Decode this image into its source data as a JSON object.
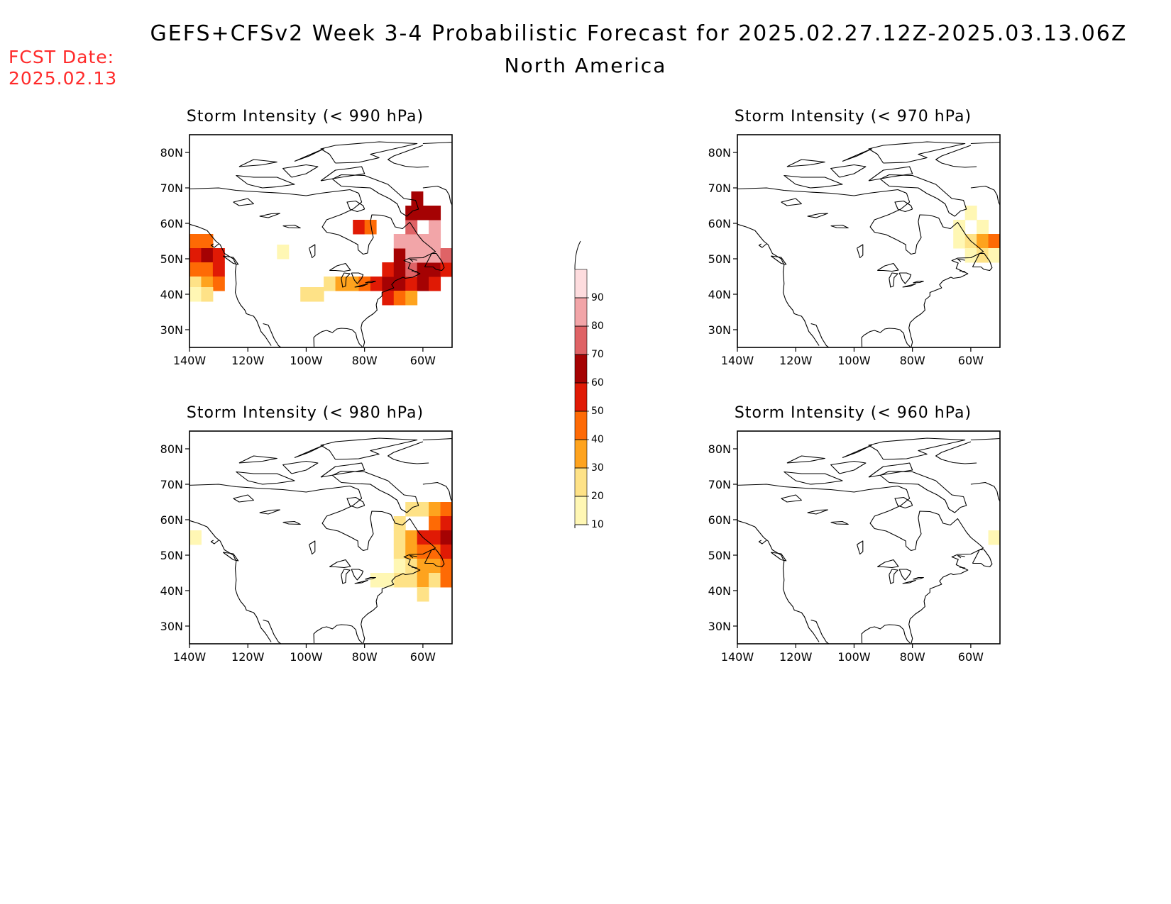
{
  "header": {
    "title": "GEFS+CFSv2 Week 3-4 Probabilistic Forecast for 2025.02.27.12Z-2025.03.13.06Z",
    "subtitle": "North America",
    "fcst_label": "FCST Date:",
    "fcst_date": "2025.02.13"
  },
  "axes": {
    "lat_labels": [
      "80N",
      "70N",
      "60N",
      "50N",
      "40N",
      "30N"
    ],
    "lat_values": [
      80,
      70,
      60,
      50,
      40,
      30
    ],
    "lon_labels": [
      "140W",
      "120W",
      "100W",
      "80W",
      "60W"
    ],
    "lon_values": [
      -140,
      -120,
      -100,
      -80,
      -60
    ],
    "lon_range": [
      -140,
      -50
    ],
    "lat_range": [
      25,
      85
    ]
  },
  "colorbar": {
    "levels": [
      "10",
      "20",
      "30",
      "40",
      "50",
      "60",
      "70",
      "80",
      "90"
    ],
    "colors": [
      "#fff7b4",
      "#fee287",
      "#fea31e",
      "#fe6a05",
      "#e01a05",
      "#a50203",
      "#df6366",
      "#f2a5a8",
      "#fddcde"
    ]
  },
  "chart_data": [
    {
      "type": "heatmap",
      "title": "Storm Intensity (< 990 hPa)",
      "cells": [
        {
          "lon": -138,
          "lat": 55,
          "v": 40
        },
        {
          "lon": -134,
          "lat": 55,
          "v": 40
        },
        {
          "lon": -138,
          "lat": 51,
          "v": 50
        },
        {
          "lon": -134,
          "lat": 51,
          "v": 60
        },
        {
          "lon": -130,
          "lat": 51,
          "v": 50
        },
        {
          "lon": -138,
          "lat": 47,
          "v": 40
        },
        {
          "lon": -134,
          "lat": 47,
          "v": 40
        },
        {
          "lon": -130,
          "lat": 47,
          "v": 50
        },
        {
          "lon": -138,
          "lat": 43,
          "v": 20
        },
        {
          "lon": -134,
          "lat": 43,
          "v": 30
        },
        {
          "lon": -130,
          "lat": 43,
          "v": 40
        },
        {
          "lon": -138,
          "lat": 40,
          "v": 10
        },
        {
          "lon": -134,
          "lat": 40,
          "v": 20
        },
        {
          "lon": -100,
          "lat": 40,
          "v": 20
        },
        {
          "lon": -96,
          "lat": 40,
          "v": 20
        },
        {
          "lon": -92,
          "lat": 43,
          "v": 20
        },
        {
          "lon": -88,
          "lat": 43,
          "v": 30
        },
        {
          "lon": -84,
          "lat": 43,
          "v": 30
        },
        {
          "lon": -80,
          "lat": 43,
          "v": 40
        },
        {
          "lon": -76,
          "lat": 43,
          "v": 50
        },
        {
          "lon": -72,
          "lat": 43,
          "v": 60
        },
        {
          "lon": -68,
          "lat": 43,
          "v": 60
        },
        {
          "lon": -64,
          "lat": 43,
          "v": 50
        },
        {
          "lon": -60,
          "lat": 43,
          "v": 60
        },
        {
          "lon": -56,
          "lat": 43,
          "v": 50
        },
        {
          "lon": -72,
          "lat": 39,
          "v": 50
        },
        {
          "lon": -68,
          "lat": 39,
          "v": 40
        },
        {
          "lon": -64,
          "lat": 39,
          "v": 30
        },
        {
          "lon": -72,
          "lat": 47,
          "v": 50
        },
        {
          "lon": -68,
          "lat": 47,
          "v": 60
        },
        {
          "lon": -64,
          "lat": 47,
          "v": 70
        },
        {
          "lon": -60,
          "lat": 47,
          "v": 60
        },
        {
          "lon": -56,
          "lat": 47,
          "v": 60
        },
        {
          "lon": -52,
          "lat": 47,
          "v": 50
        },
        {
          "lon": -68,
          "lat": 51,
          "v": 60
        },
        {
          "lon": -64,
          "lat": 51,
          "v": 80
        },
        {
          "lon": -60,
          "lat": 51,
          "v": 80
        },
        {
          "lon": -56,
          "lat": 51,
          "v": 80
        },
        {
          "lon": -52,
          "lat": 51,
          "v": 70
        },
        {
          "lon": -68,
          "lat": 55,
          "v": 80
        },
        {
          "lon": -64,
          "lat": 55,
          "v": 80
        },
        {
          "lon": -60,
          "lat": 55,
          "v": 80
        },
        {
          "lon": -56,
          "lat": 55,
          "v": 80
        },
        {
          "lon": -64,
          "lat": 59,
          "v": 70
        },
        {
          "lon": -56,
          "lat": 59,
          "v": 80
        },
        {
          "lon": -64,
          "lat": 63,
          "v": 60
        },
        {
          "lon": -60,
          "lat": 63,
          "v": 60
        },
        {
          "lon": -56,
          "lat": 63,
          "v": 60
        },
        {
          "lon": -62,
          "lat": 67,
          "v": 60
        },
        {
          "lon": -82,
          "lat": 59,
          "v": 50
        },
        {
          "lon": -78,
          "lat": 59,
          "v": 40
        },
        {
          "lon": -108,
          "lat": 52,
          "v": 10
        }
      ]
    },
    {
      "type": "heatmap",
      "title": "Storm Intensity (< 970 hPa)",
      "cells": [
        {
          "lon": -64,
          "lat": 59,
          "v": 10
        },
        {
          "lon": -60,
          "lat": 63,
          "v": 10
        },
        {
          "lon": -56,
          "lat": 59,
          "v": 10
        },
        {
          "lon": -64,
          "lat": 55,
          "v": 10
        },
        {
          "lon": -60,
          "lat": 55,
          "v": 20
        },
        {
          "lon": -56,
          "lat": 55,
          "v": 30
        },
        {
          "lon": -52,
          "lat": 55,
          "v": 40
        },
        {
          "lon": -60,
          "lat": 51,
          "v": 10
        },
        {
          "lon": -56,
          "lat": 51,
          "v": 20
        },
        {
          "lon": -52,
          "lat": 51,
          "v": 10
        }
      ]
    },
    {
      "type": "heatmap",
      "title": "Storm Intensity (< 980 hPa)",
      "cells": [
        {
          "lon": -138,
          "lat": 55,
          "v": 10
        },
        {
          "lon": -64,
          "lat": 63,
          "v": 20
        },
        {
          "lon": -60,
          "lat": 63,
          "v": 20
        },
        {
          "lon": -56,
          "lat": 63,
          "v": 30
        },
        {
          "lon": -52,
          "lat": 63,
          "v": 40
        },
        {
          "lon": -68,
          "lat": 59,
          "v": 20
        },
        {
          "lon": -56,
          "lat": 59,
          "v": 40
        },
        {
          "lon": -52,
          "lat": 59,
          "v": 50
        },
        {
          "lon": -68,
          "lat": 55,
          "v": 20
        },
        {
          "lon": -64,
          "lat": 55,
          "v": 30
        },
        {
          "lon": -60,
          "lat": 55,
          "v": 50
        },
        {
          "lon": -56,
          "lat": 55,
          "v": 50
        },
        {
          "lon": -52,
          "lat": 55,
          "v": 60
        },
        {
          "lon": -68,
          "lat": 51,
          "v": 20
        },
        {
          "lon": -64,
          "lat": 51,
          "v": 30
        },
        {
          "lon": -60,
          "lat": 51,
          "v": 40
        },
        {
          "lon": -56,
          "lat": 51,
          "v": 40
        },
        {
          "lon": -52,
          "lat": 51,
          "v": 50
        },
        {
          "lon": -68,
          "lat": 47,
          "v": 10
        },
        {
          "lon": -64,
          "lat": 47,
          "v": 20
        },
        {
          "lon": -60,
          "lat": 47,
          "v": 30
        },
        {
          "lon": -56,
          "lat": 47,
          "v": 30
        },
        {
          "lon": -52,
          "lat": 47,
          "v": 40
        },
        {
          "lon": -68,
          "lat": 43,
          "v": 20
        },
        {
          "lon": -64,
          "lat": 43,
          "v": 20
        },
        {
          "lon": -60,
          "lat": 43,
          "v": 30
        },
        {
          "lon": -56,
          "lat": 43,
          "v": 20
        },
        {
          "lon": -52,
          "lat": 43,
          "v": 40
        },
        {
          "lon": -72,
          "lat": 43,
          "v": 10
        },
        {
          "lon": -76,
          "lat": 43,
          "v": 10
        },
        {
          "lon": -60,
          "lat": 39,
          "v": 20
        }
      ]
    },
    {
      "type": "heatmap",
      "title": "Storm Intensity (< 960 hPa)",
      "cells": [
        {
          "lon": -52,
          "lat": 55,
          "v": 10
        }
      ]
    }
  ]
}
